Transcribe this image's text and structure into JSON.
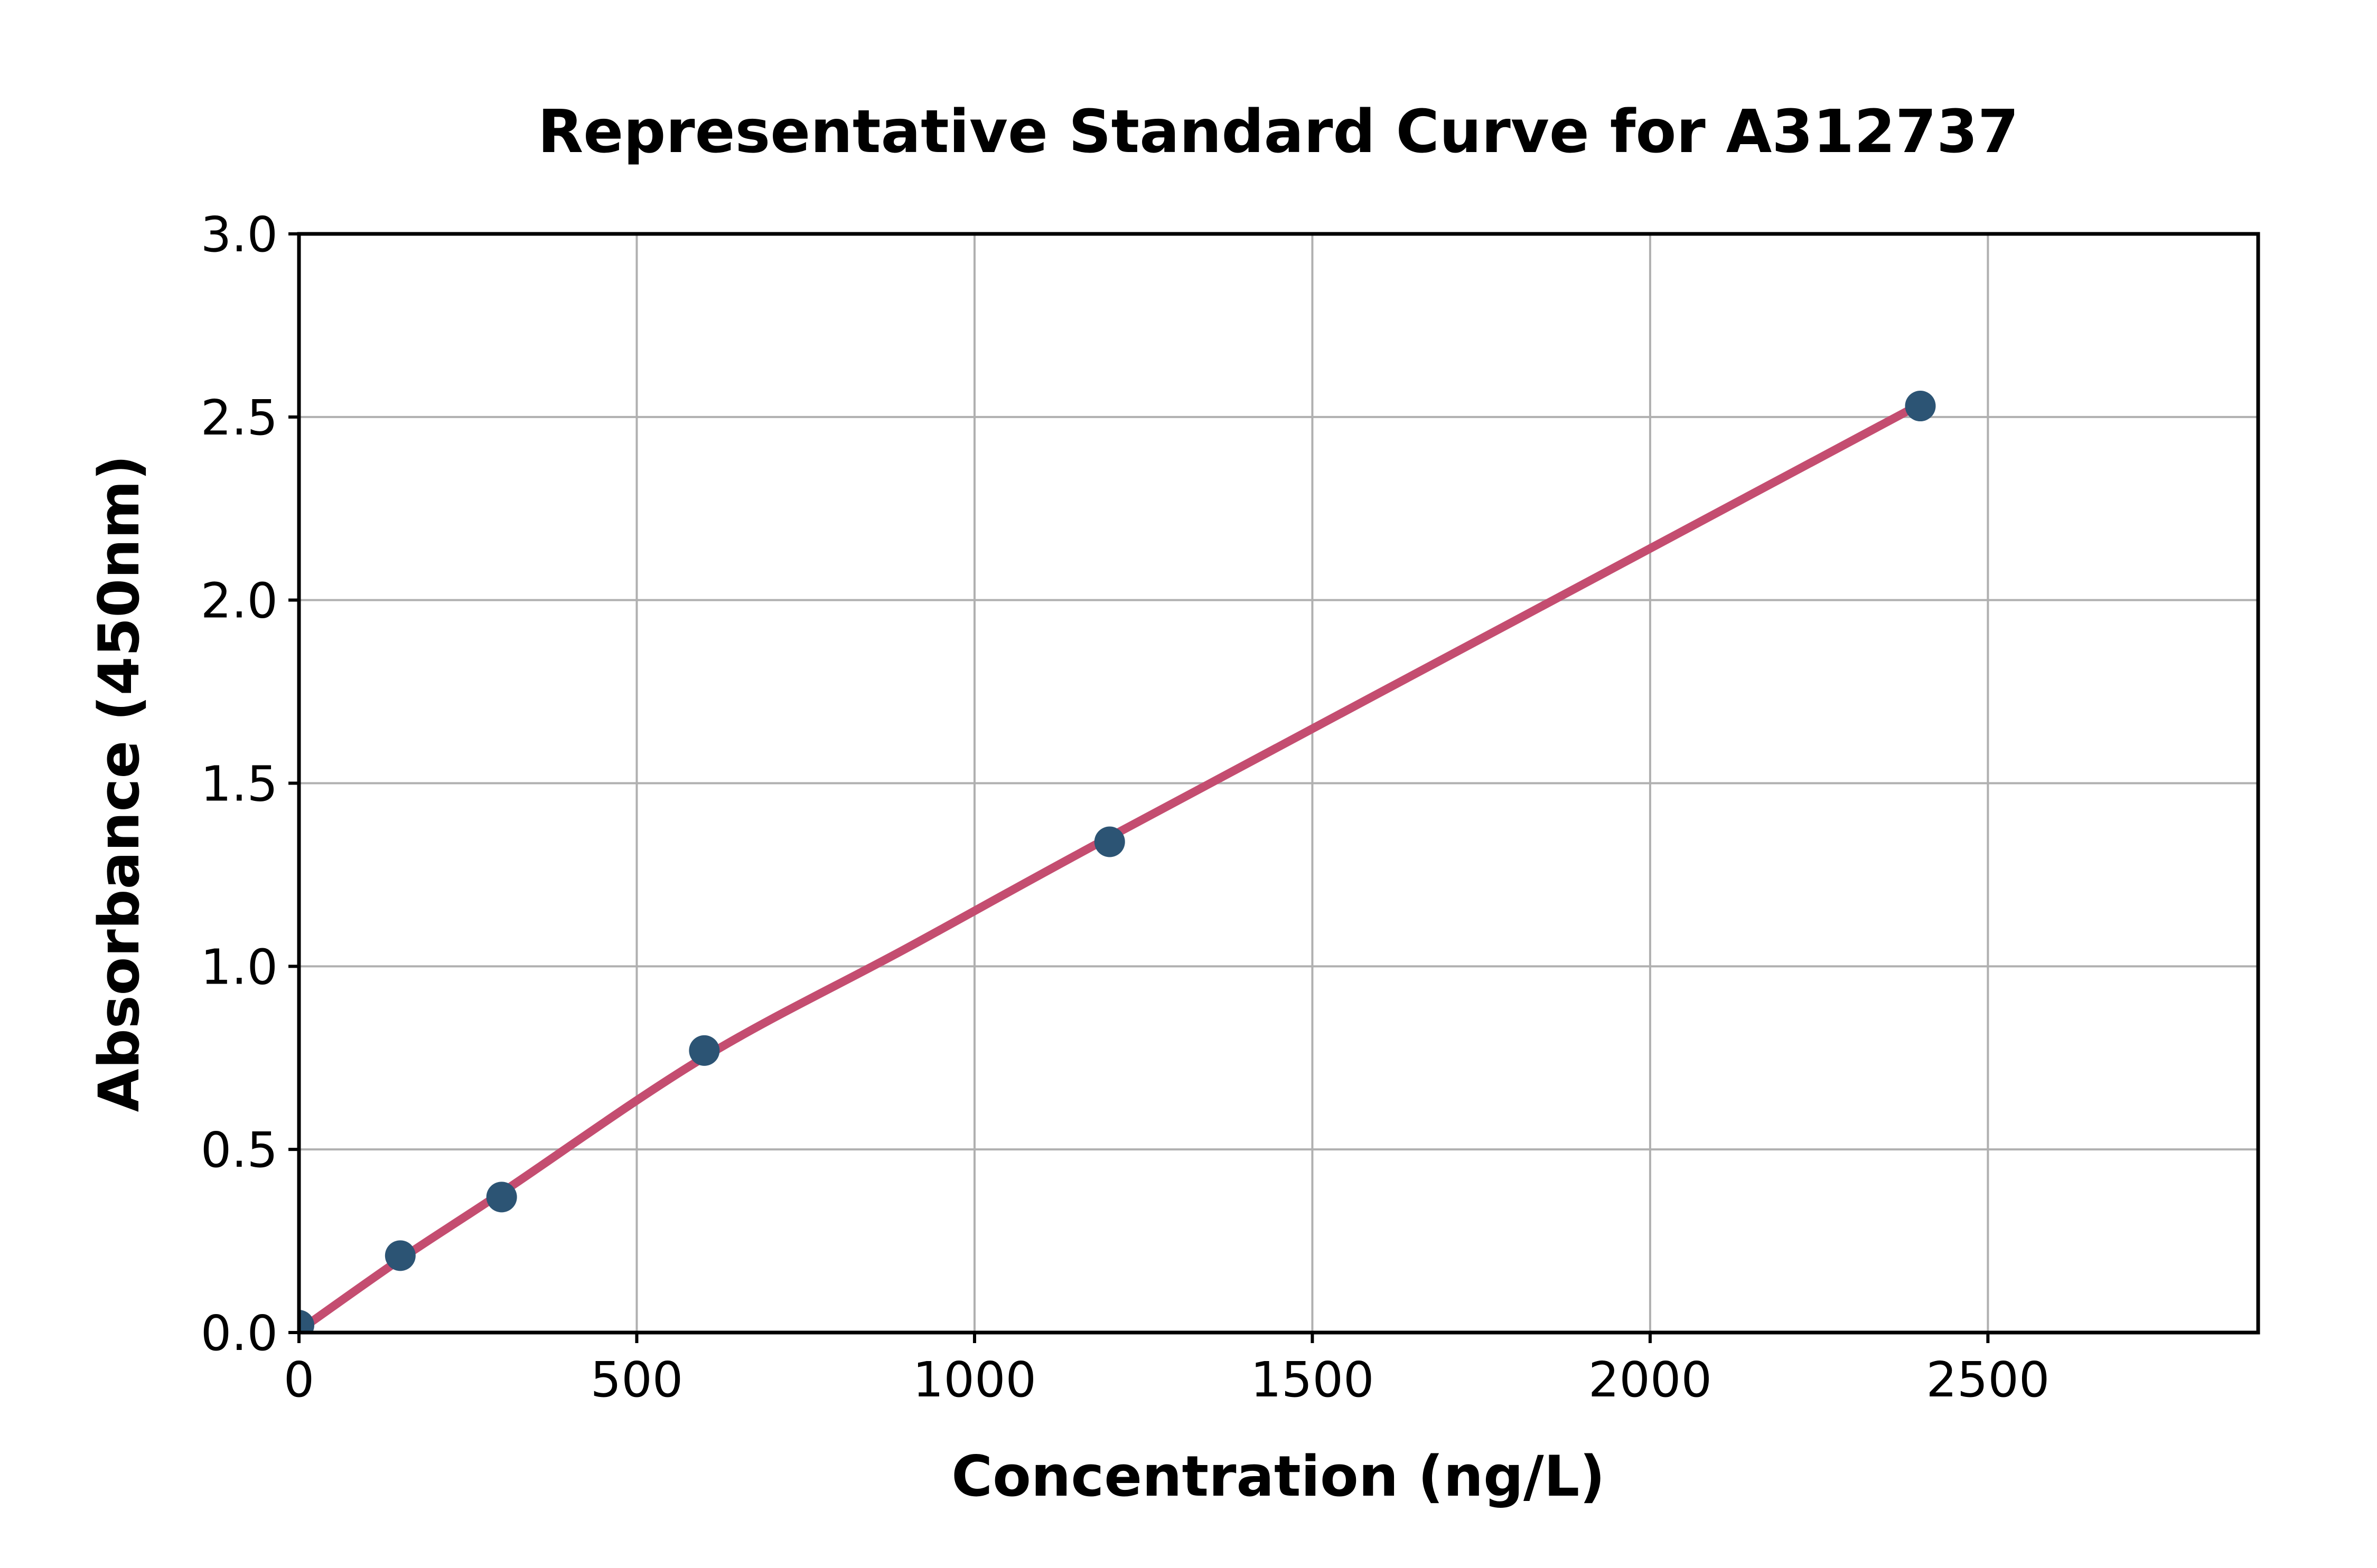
{
  "figure": {
    "title": "Representative Standard Curve for A312737"
  },
  "chart_data": {
    "type": "scatter",
    "title": "Representative Standard Curve for A312737",
    "xlabel": "Concentration (ng/L)",
    "ylabel": "Absorbance (450nm)",
    "xlim": [
      0,
      2900
    ],
    "ylim": [
      0,
      3.0
    ],
    "grid": true,
    "legend": false,
    "x_ticks": [
      {
        "value": 0,
        "label": "0"
      },
      {
        "value": 500,
        "label": "500"
      },
      {
        "value": 1000,
        "label": "1000"
      },
      {
        "value": 1500,
        "label": "1500"
      },
      {
        "value": 2000,
        "label": "2000"
      },
      {
        "value": 2500,
        "label": "2500"
      }
    ],
    "y_ticks": [
      {
        "value": 0.0,
        "label": "0.0"
      },
      {
        "value": 0.5,
        "label": "0.5"
      },
      {
        "value": 1.0,
        "label": "1.0"
      },
      {
        "value": 1.5,
        "label": "1.5"
      },
      {
        "value": 2.0,
        "label": "2.0"
      },
      {
        "value": 2.5,
        "label": "2.5"
      },
      {
        "value": 3.0,
        "label": "3.0"
      }
    ],
    "series": [
      {
        "name": "standard-data-points",
        "type": "scatter",
        "marker": "circle",
        "color": "#2c5474",
        "points": [
          [
            0,
            0.02
          ],
          [
            150,
            0.21
          ],
          [
            300,
            0.37
          ],
          [
            600,
            0.77
          ],
          [
            1200,
            1.34
          ],
          [
            2400,
            2.53
          ]
        ]
      },
      {
        "name": "fitted-standard-curve",
        "type": "line",
        "color": "#c44d70",
        "points": [
          [
            0,
            0.005
          ],
          [
            150,
            0.2
          ],
          [
            300,
            0.382
          ],
          [
            600,
            0.752
          ],
          [
            900,
            1.05
          ],
          [
            1200,
            1.353
          ],
          [
            1800,
            1.944
          ],
          [
            2400,
            2.535
          ]
        ]
      }
    ],
    "colors": {
      "grid": "#b0b0b0",
      "spine": "#000000",
      "text": "#000000",
      "background": "#ffffff"
    }
  }
}
